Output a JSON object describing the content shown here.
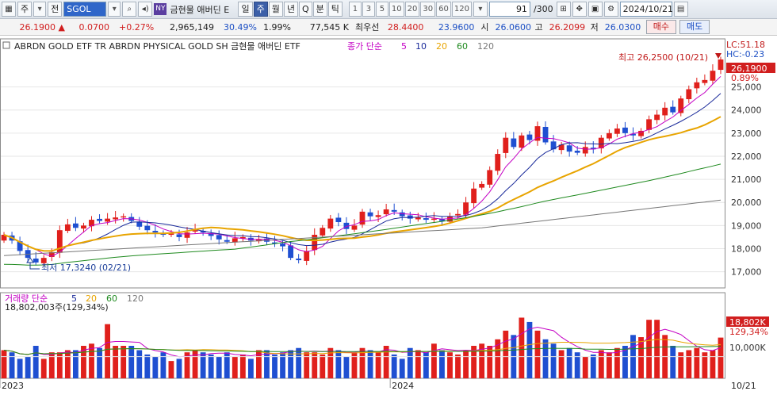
{
  "toolbar": {
    "market": "주",
    "board": "전",
    "symbol": "SGOL",
    "exchange_badge": "NY",
    "name": "금현물 애버딘 E",
    "periods": [
      "일",
      "주",
      "월",
      "년",
      "Q",
      "분",
      "틱"
    ],
    "active_period": "주",
    "intervals": [
      "1",
      "3",
      "5",
      "10",
      "20",
      "30",
      "60",
      "120"
    ],
    "count": "91",
    "count_total": "/300",
    "date": "2024/10/21"
  },
  "quote": {
    "price": "26.1900",
    "change": "0.0700",
    "change_pct": "+0.27%",
    "volume": "2,965,149",
    "turnover_pct": "30.49%",
    "pct2": "1.99%",
    "amount": "77,545 K",
    "top_label": "최우선",
    "top_ask": "28.4400",
    "top_bid": "23.9600",
    "open_label": "시",
    "open": "26.0600",
    "high_label": "고",
    "high": "26.2099",
    "low_label": "저",
    "low": "26.0300",
    "buy_label": "매수",
    "sell_label": "매도"
  },
  "chart_data": [
    {
      "type": "candlestick",
      "title": "ABRDN GOLD ETF TR ABRDN PHYSICAL GOLD SH  금현물 애버딘 ETF",
      "legend_label": "종가 단순",
      "ma_periods": [
        "5",
        "10",
        "20",
        "60",
        "120"
      ],
      "ma_colors": [
        "#c400c4",
        "#1a2a9a",
        "#e8a400",
        "#1f8a1f",
        "#777777"
      ],
      "ylim": [
        16300,
        26600
      ],
      "y_ticks": [
        "17,000",
        "18,000",
        "19,000",
        "20,000",
        "21,000",
        "22,000",
        "23,000",
        "24,000",
        "25,000"
      ],
      "x_labels": [
        "2023",
        "2024",
        "10/21"
      ],
      "x_label_index": [
        0,
        49,
        90
      ],
      "annotations": {
        "high": "최고 26,2500 (10/21)",
        "low": "최저 17,3240 (02/21)",
        "last_price": "26,1900",
        "last_pct": "0.89%",
        "lc": "LC:51.18",
        "hc": "HC:-0.23"
      },
      "closes": [
        18600,
        18350,
        17900,
        17600,
        17400,
        17600,
        17850,
        18800,
        19050,
        18900,
        19000,
        19250,
        19200,
        19300,
        19350,
        19400,
        19200,
        18950,
        18800,
        18700,
        18600,
        18650,
        18500,
        18700,
        18800,
        18700,
        18550,
        18400,
        18300,
        18450,
        18500,
        18350,
        18400,
        18300,
        18250,
        18100,
        17600,
        17500,
        17900,
        18600,
        18900,
        19300,
        19150,
        18850,
        19000,
        19600,
        19400,
        19450,
        19700,
        19600,
        19400,
        19300,
        19350,
        19250,
        19300,
        19200,
        19400,
        19500,
        20000,
        20600,
        20800,
        21400,
        22100,
        22800,
        22400,
        22900,
        22700,
        23300,
        22600,
        22300,
        22500,
        22200,
        22150,
        22400,
        22300,
        22800,
        23000,
        23200,
        23000,
        22900,
        23100,
        23600,
        23800,
        24100,
        23900,
        24500,
        24900,
        25200,
        25300,
        25700,
        26190
      ],
      "volume": {
        "legend_label": "거래량  단순",
        "ma_periods": [
          "5",
          "20",
          "60",
          "120"
        ],
        "current": "18,802,003주(129,34%)",
        "y_ticks": [
          "10,000K",
          "18,802K",
          "129,34%"
        ],
        "values": [
          13,
          12,
          9,
          10,
          15,
          9,
          12,
          12,
          13,
          13,
          15,
          16,
          14,
          25,
          15,
          15,
          15,
          13,
          11,
          10,
          12,
          8,
          9,
          12,
          13,
          12,
          11,
          10,
          12,
          10,
          11,
          9,
          13,
          13,
          11,
          12,
          13,
          14,
          12,
          12,
          11,
          14,
          13,
          10,
          12,
          14,
          13,
          12,
          15,
          11,
          9,
          14,
          13,
          12,
          16,
          13,
          12,
          11,
          13,
          15,
          16,
          15,
          18,
          22,
          20,
          28,
          26,
          22,
          18,
          16,
          13,
          14,
          12,
          10,
          11,
          13,
          12,
          14,
          15,
          20,
          19,
          27,
          27,
          20,
          15,
          12,
          13,
          14,
          12,
          13,
          18.8
        ]
      }
    }
  ]
}
